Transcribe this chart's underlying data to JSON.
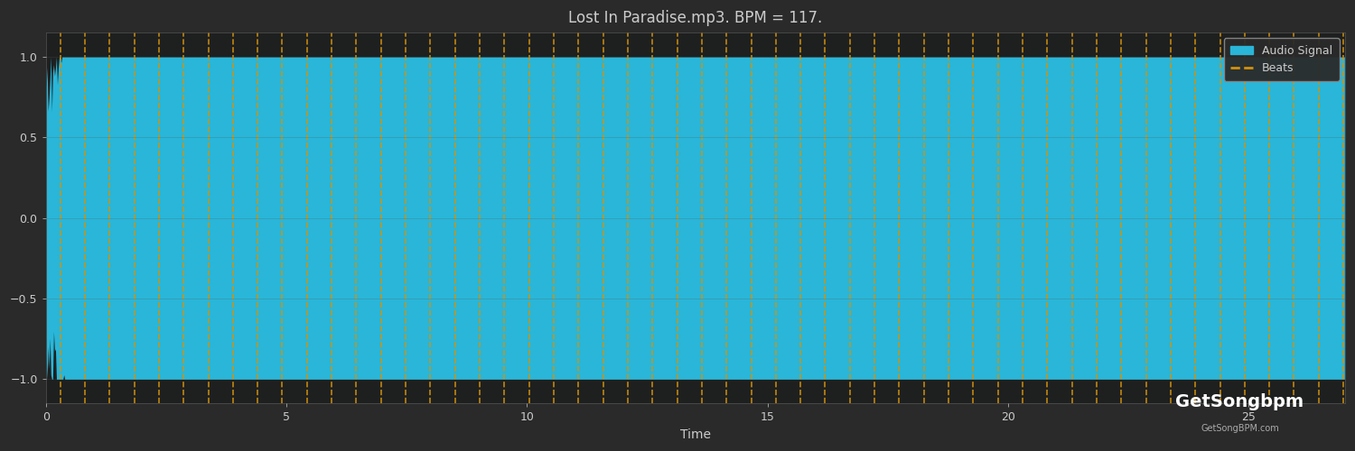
{
  "title": "Lost In Paradise.mp3. BPM = 117.",
  "xlabel": "Time",
  "ylabel": "",
  "background_color": "#2a2a2a",
  "axes_facecolor": "#1e2020",
  "audio_color": "#29b6d8",
  "beat_color": "#d4920a",
  "text_color": "#cccccc",
  "grid_color": "#555555",
  "bpm": 117,
  "duration": 27.0,
  "ylim": [
    -1.15,
    1.15
  ],
  "xlim": [
    0,
    27
  ],
  "yticks": [
    -1.0,
    -0.5,
    0.0,
    0.5,
    1.0
  ],
  "xticks": [
    0,
    5,
    10,
    15,
    20,
    25
  ],
  "title_fontsize": 12,
  "label_fontsize": 10,
  "tick_fontsize": 9,
  "legend_facecolor": "#2a2a2a",
  "legend_edgecolor": "#888888"
}
